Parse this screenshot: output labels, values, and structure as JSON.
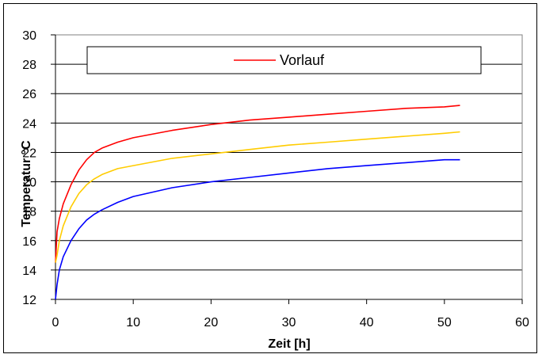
{
  "chart_data": {
    "type": "line",
    "xlabel": "Zeit [h]",
    "ylabel": "Temperatur °C",
    "xlim": [
      0,
      60
    ],
    "ylim": [
      12,
      30
    ],
    "xticks": [
      0,
      10,
      20,
      30,
      40,
      50,
      60
    ],
    "yticks": [
      12,
      14,
      16,
      18,
      20,
      22,
      24,
      26,
      28,
      30
    ],
    "grid": "horizontal",
    "legend": {
      "placement": "top",
      "entries": [
        "Vorlauf"
      ]
    },
    "colors": {
      "red": "#ff0000",
      "yellow": "#ffcc00",
      "blue": "#0000ff"
    },
    "series": [
      {
        "name": "Vorlauf",
        "color": "#ff0000",
        "x": [
          0,
          0.2,
          0.5,
          1,
          2,
          3,
          4,
          5,
          6,
          8,
          10,
          15,
          20,
          25,
          30,
          35,
          40,
          45,
          50,
          52
        ],
        "y": [
          14.5,
          16.6,
          17.5,
          18.5,
          19.8,
          20.8,
          21.5,
          22.0,
          22.3,
          22.7,
          23.0,
          23.5,
          23.9,
          24.2,
          24.4,
          24.6,
          24.8,
          25.0,
          25.1,
          25.2
        ]
      },
      {
        "color": "#ffcc00",
        "x": [
          0,
          0.2,
          0.5,
          1,
          2,
          3,
          4,
          5,
          6,
          8,
          10,
          15,
          20,
          25,
          30,
          35,
          40,
          45,
          50,
          52
        ],
        "y": [
          14.5,
          15.0,
          16.0,
          17.0,
          18.3,
          19.2,
          19.8,
          20.2,
          20.5,
          20.9,
          21.1,
          21.6,
          21.9,
          22.2,
          22.5,
          22.7,
          22.9,
          23.1,
          23.3,
          23.4
        ]
      },
      {
        "color": "#0000ff",
        "x": [
          0,
          0.2,
          0.5,
          1,
          2,
          3,
          4,
          5,
          6,
          8,
          10,
          15,
          20,
          25,
          30,
          35,
          40,
          45,
          50,
          52
        ],
        "y": [
          12.0,
          13.0,
          14.0,
          14.9,
          16.0,
          16.8,
          17.4,
          17.8,
          18.1,
          18.6,
          19.0,
          19.6,
          20.0,
          20.3,
          20.6,
          20.9,
          21.1,
          21.3,
          21.5,
          21.5
        ]
      }
    ]
  }
}
